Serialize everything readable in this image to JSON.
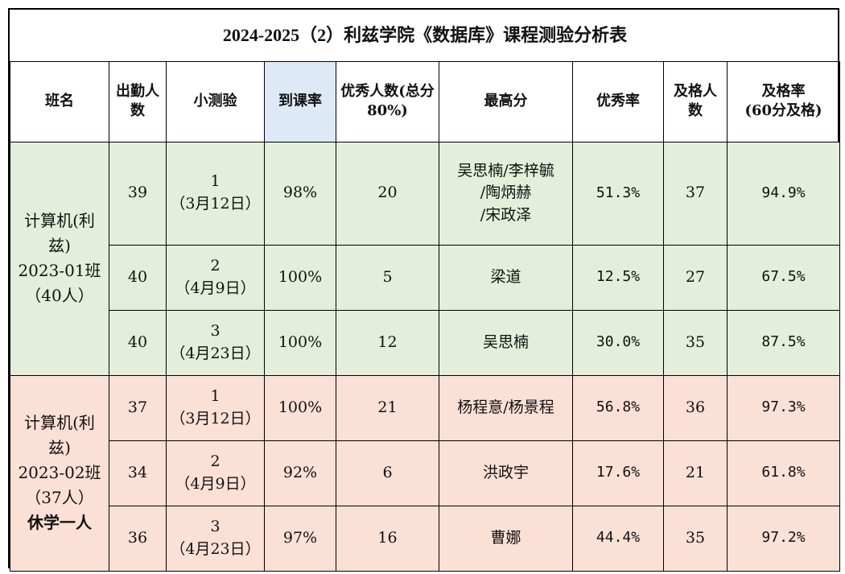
{
  "title": "2024-2025（2）利兹学院《数据库》课程测验分析表",
  "headers": {
    "class_name": "班名",
    "attendance": "出勤人数",
    "quiz": "小测验",
    "attendance_rate": "到课率",
    "excellent_count": "优秀人数(总分80%)",
    "top_score": "最高分",
    "excellent_rate": "优秀率",
    "pass_count": "及格人数",
    "pass_rate_line1": "及格率",
    "pass_rate_line2": "(60分及格)"
  },
  "groups": [
    {
      "class_line1": "计算机(利",
      "class_line2": "兹)",
      "class_line3": "2023-01班",
      "class_line4": "（40人）",
      "class_note": "",
      "color": "#e3efda",
      "rows": [
        {
          "attendance": "39",
          "quiz_no": "1",
          "quiz_date": "（3月12日）",
          "rate": "98%",
          "excellent": "20",
          "top_line1": "吴思楠/李梓毓",
          "top_line2": "/陶炳赫",
          "top_line3": "/宋政泽",
          "excellent_rate": "51.3%",
          "pass": "37",
          "pass_rate": "94.9%"
        },
        {
          "attendance": "40",
          "quiz_no": "2",
          "quiz_date": "（4月9日）",
          "rate": "100%",
          "excellent": "5",
          "top_line1": "梁道",
          "excellent_rate": "12.5%",
          "pass": "27",
          "pass_rate": "67.5%"
        },
        {
          "attendance": "40",
          "quiz_no": "3",
          "quiz_date": "（4月23日）",
          "rate": "100%",
          "excellent": "12",
          "top_line1": "吴思楠",
          "excellent_rate": "30.0%",
          "pass": "35",
          "pass_rate": "87.5%"
        }
      ]
    },
    {
      "class_line1": "计算机(利",
      "class_line2": "兹)",
      "class_line3": "2023-02班",
      "class_line4": "（37人）",
      "class_note": "休学一人",
      "color": "#fbe0d6",
      "rows": [
        {
          "attendance": "37",
          "quiz_no": "1",
          "quiz_date": "（3月12日）",
          "rate": "100%",
          "excellent": "21",
          "top_line1": "杨程意/杨景程",
          "excellent_rate": "56.8%",
          "pass": "36",
          "pass_rate": "97.3%"
        },
        {
          "attendance": "34",
          "quiz_no": "2",
          "quiz_date": "（4月9日）",
          "rate": "92%",
          "excellent": "6",
          "top_line1": "洪政宇",
          "excellent_rate": "17.6%",
          "pass": "21",
          "pass_rate": "61.8%"
        },
        {
          "attendance": "36",
          "quiz_no": "3",
          "quiz_date": "（4月23日）",
          "rate": "97%",
          "excellent": "16",
          "top_line1": "曹娜",
          "excellent_rate": "44.4%",
          "pass": "35",
          "pass_rate": "97.2%"
        }
      ]
    }
  ]
}
